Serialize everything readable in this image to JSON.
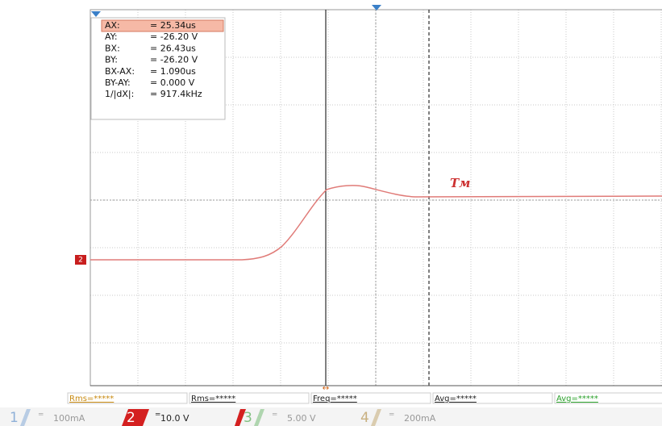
{
  "cursor_readout": {
    "rows": [
      {
        "label": "AX:",
        "value": "= 25.34us"
      },
      {
        "label": "AY:",
        "value": "= -26.20 V"
      },
      {
        "label": "BX:",
        "value": "= 26.43us"
      },
      {
        "label": "BY:",
        "value": "= -26.20 V"
      },
      {
        "label": "BX-AX:",
        "value": "= 1.090us"
      },
      {
        "label": "BY-AY:",
        "value": "= 0.000 V"
      },
      {
        "label": "1/|dX|:",
        "value": "= 917.4kHz"
      }
    ]
  },
  "trace_label": "Tм",
  "channel_marker": "2",
  "measurements": [
    "Rms=*****",
    "Rms=*****",
    "Freq=*****",
    "Avg=*****",
    "Avg=*****"
  ],
  "channels": [
    {
      "number": "1",
      "scale": "100mA"
    },
    {
      "number": "2",
      "scale": "10.0 V"
    },
    {
      "number": "3",
      "scale": "5.00 V"
    },
    {
      "number": "4",
      "scale": "200mA"
    }
  ]
}
